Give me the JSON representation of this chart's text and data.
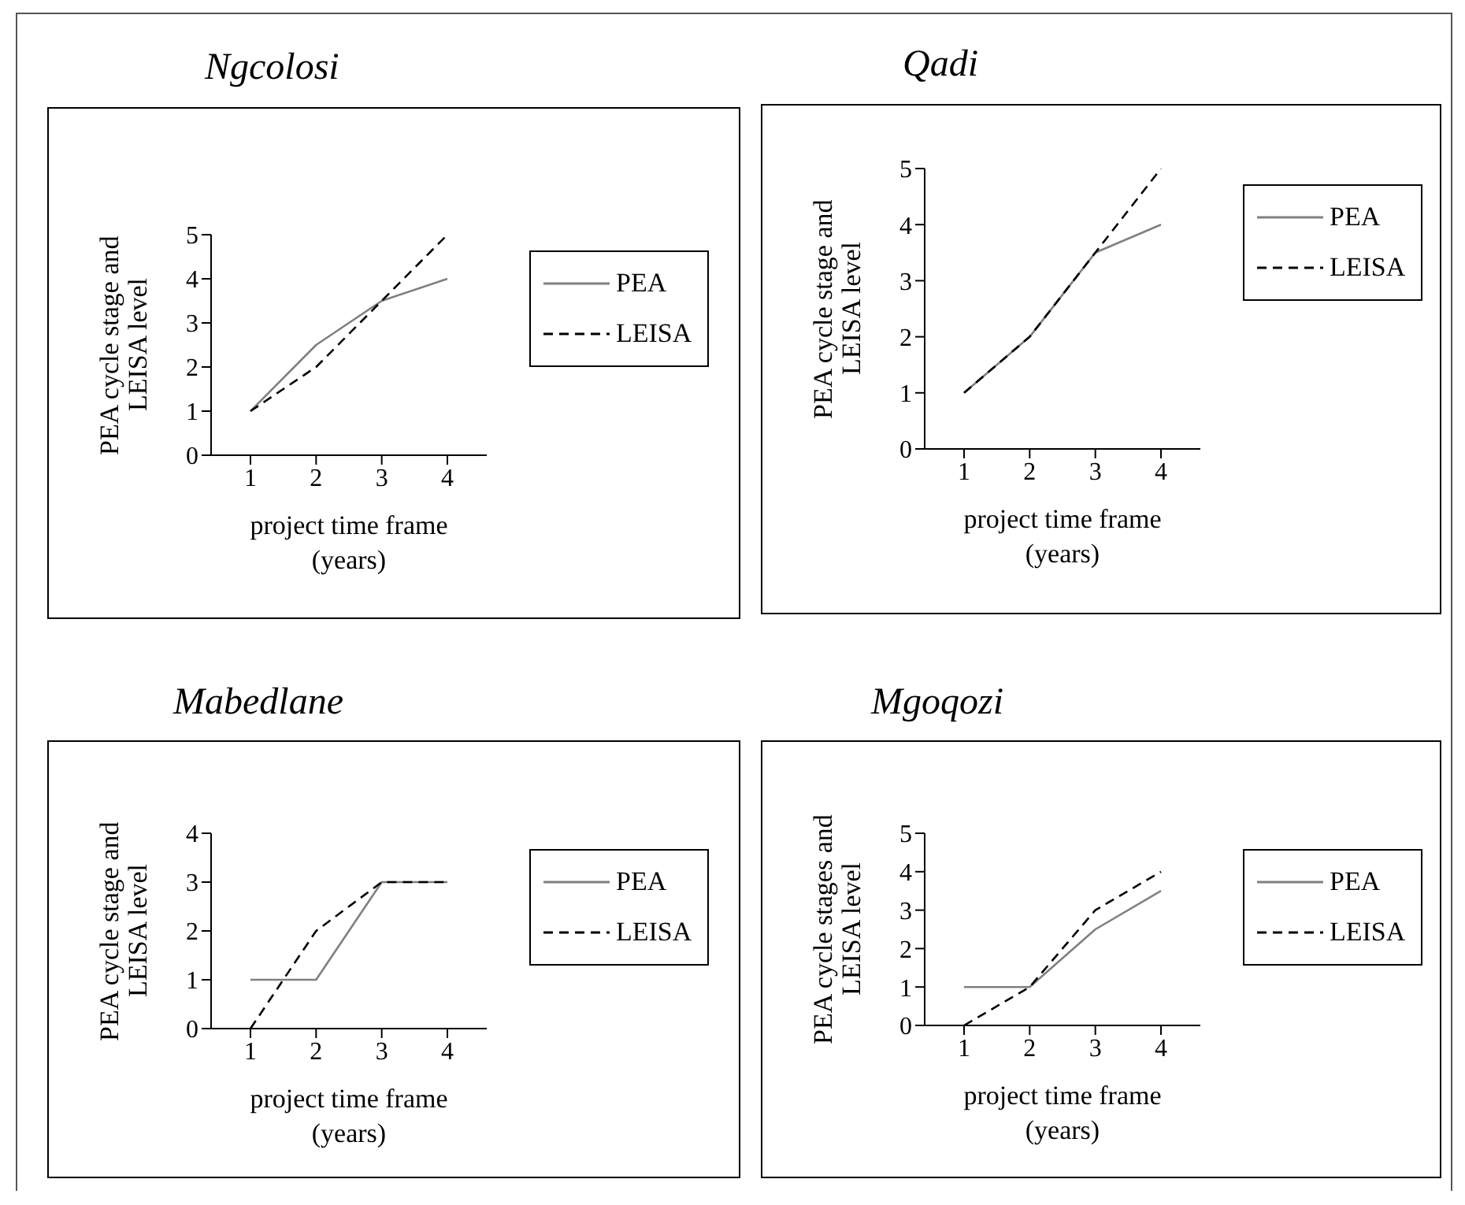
{
  "chart_data": [
    {
      "type": "line",
      "title": "Ngcolosi",
      "xlabel": "project time frame (years)",
      "ylabel": "PEA cycle stage and LEISA level",
      "categories": [
        "1",
        "2",
        "3",
        "4"
      ],
      "ylim": [
        0,
        5
      ],
      "yticks": [
        0,
        1,
        2,
        3,
        4,
        5
      ],
      "legend": "right",
      "series": [
        {
          "name": "PEA",
          "color": "#808080",
          "line_style": "solid",
          "values": [
            1,
            2.5,
            3.5,
            4
          ]
        },
        {
          "name": "LEISA",
          "color": "#000000",
          "line_style": "dashed",
          "values": [
            1,
            2,
            3.5,
            5
          ]
        }
      ]
    },
    {
      "type": "line",
      "title": "Qadi",
      "xlabel": "project time frame (years)",
      "ylabel": "PEA cycle stage and LEISA level",
      "categories": [
        "1",
        "2",
        "3",
        "4"
      ],
      "ylim": [
        0,
        5
      ],
      "yticks": [
        0,
        1,
        2,
        3,
        4,
        5
      ],
      "legend": "right",
      "series": [
        {
          "name": "PEA",
          "color": "#808080",
          "line_style": "solid",
          "values": [
            1,
            2,
            3.5,
            4
          ]
        },
        {
          "name": "LEISA",
          "color": "#000000",
          "line_style": "dashed",
          "values": [
            1,
            2,
            3.5,
            5
          ]
        }
      ]
    },
    {
      "type": "line",
      "title": "Mabedlane",
      "xlabel": "project time frame (years)",
      "ylabel": "PEA cycle stage and LEISA level",
      "categories": [
        "1",
        "2",
        "3",
        "4"
      ],
      "ylim": [
        0,
        4
      ],
      "yticks": [
        0,
        1,
        2,
        3,
        4
      ],
      "legend": "right",
      "series": [
        {
          "name": "PEA",
          "color": "#808080",
          "line_style": "solid",
          "values": [
            1,
            1,
            3,
            3
          ]
        },
        {
          "name": "LEISA",
          "color": "#000000",
          "line_style": "dashed",
          "values": [
            0,
            2,
            3,
            3
          ]
        }
      ]
    },
    {
      "type": "line",
      "title": "Mgoqozi",
      "xlabel": "project time frame (years)",
      "ylabel": "PEA cycle stages and LEISA level",
      "categories": [
        "1",
        "2",
        "3",
        "4"
      ],
      "ylim": [
        0,
        5
      ],
      "yticks": [
        0,
        1,
        2,
        3,
        4,
        5
      ],
      "legend": "right",
      "series": [
        {
          "name": "PEA",
          "color": "#808080",
          "line_style": "solid",
          "values": [
            1,
            1,
            2.5,
            3.5
          ]
        },
        {
          "name": "LEISA",
          "color": "#000000",
          "line_style": "dashed",
          "values": [
            0,
            1,
            3,
            4
          ]
        }
      ]
    }
  ]
}
